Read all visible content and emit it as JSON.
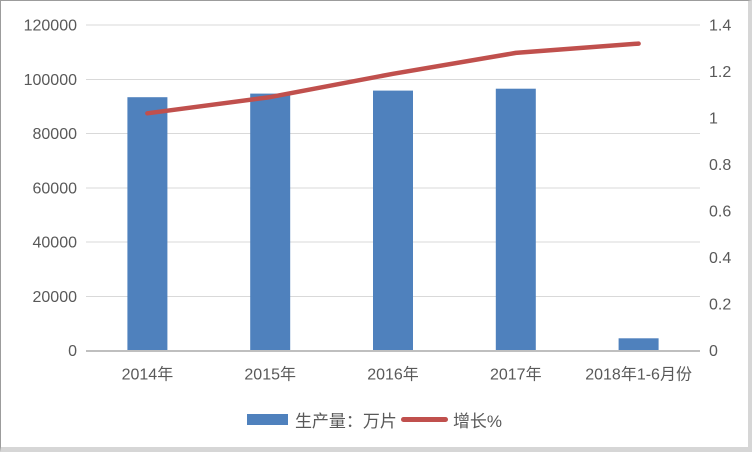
{
  "chart_data": {
    "type": "bar",
    "subtype": "combo-bar-line-dual-axis",
    "title": "",
    "categories": [
      "2014年",
      "2015年",
      "2016年",
      "2017年",
      "2018年1-6月份"
    ],
    "series": [
      {
        "name": "生产量：万片",
        "type": "bar",
        "axis": "left",
        "color": "#4f81bd",
        "values": [
          93400,
          94700,
          95800,
          96500,
          4500
        ]
      },
      {
        "name": "增长%",
        "type": "line",
        "axis": "right",
        "color": "#c0504d",
        "values": [
          1.02,
          1.09,
          1.19,
          1.28,
          1.32
        ]
      }
    ],
    "left_axis": {
      "min": 0,
      "max": 120000,
      "step": 20000,
      "tick_labels": [
        "0",
        "20000",
        "40000",
        "60000",
        "80000",
        "100000",
        "120000"
      ]
    },
    "right_axis": {
      "min": 0,
      "max": 1.4,
      "step": 0.2,
      "tick_labels": [
        "0",
        "0.2",
        "0.4",
        "0.6",
        "0.8",
        "1",
        "1.2",
        "1.4"
      ]
    },
    "grid": true,
    "legend_position": "bottom"
  },
  "colors": {
    "bar_fill": "#4f81bd",
    "line_stroke": "#c0504d",
    "gridline": "#d9d9d9",
    "axis_line": "#bfbfbf",
    "text": "#595959",
    "background": "#ffffff"
  }
}
